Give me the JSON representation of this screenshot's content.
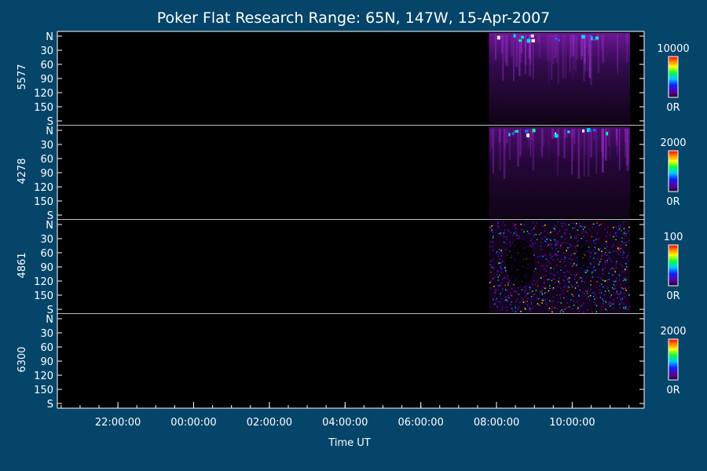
{
  "chart_data": {
    "type": "heatmap",
    "title": "Poker Flat Research Range: 65N, 147W, 15-Apr-2007",
    "xlabel": "Time UT",
    "x_tick_labels": [
      "22:00:00",
      "00:00:00",
      "02:00:00",
      "04:00:00",
      "06:00:00",
      "08:00:00",
      "10:00:00"
    ],
    "x_range_hours": [
      20.4,
      35.9
    ],
    "x_tick_hours": [
      22,
      24,
      26,
      28,
      30,
      32,
      34
    ],
    "data_start_hour": 31.8,
    "y_tick_labels": [
      "N",
      "30",
      "60",
      "90",
      "120",
      "150",
      "S"
    ],
    "y_range_deg": [
      0,
      180
    ],
    "panels": [
      {
        "ylabel": "5577",
        "colorbar_max": "10000",
        "colorbar_min": "0R"
      },
      {
        "ylabel": "4278",
        "colorbar_max": "2000",
        "colorbar_min": "0R"
      },
      {
        "ylabel": "4861",
        "colorbar_max": "100",
        "colorbar_min": "0R"
      },
      {
        "ylabel": "6300",
        "colorbar_max": "2000",
        "colorbar_min": "0R"
      }
    ],
    "colors": {
      "background": "#05456a",
      "plot_bg": "#000000",
      "axis": "#ffffff"
    }
  }
}
